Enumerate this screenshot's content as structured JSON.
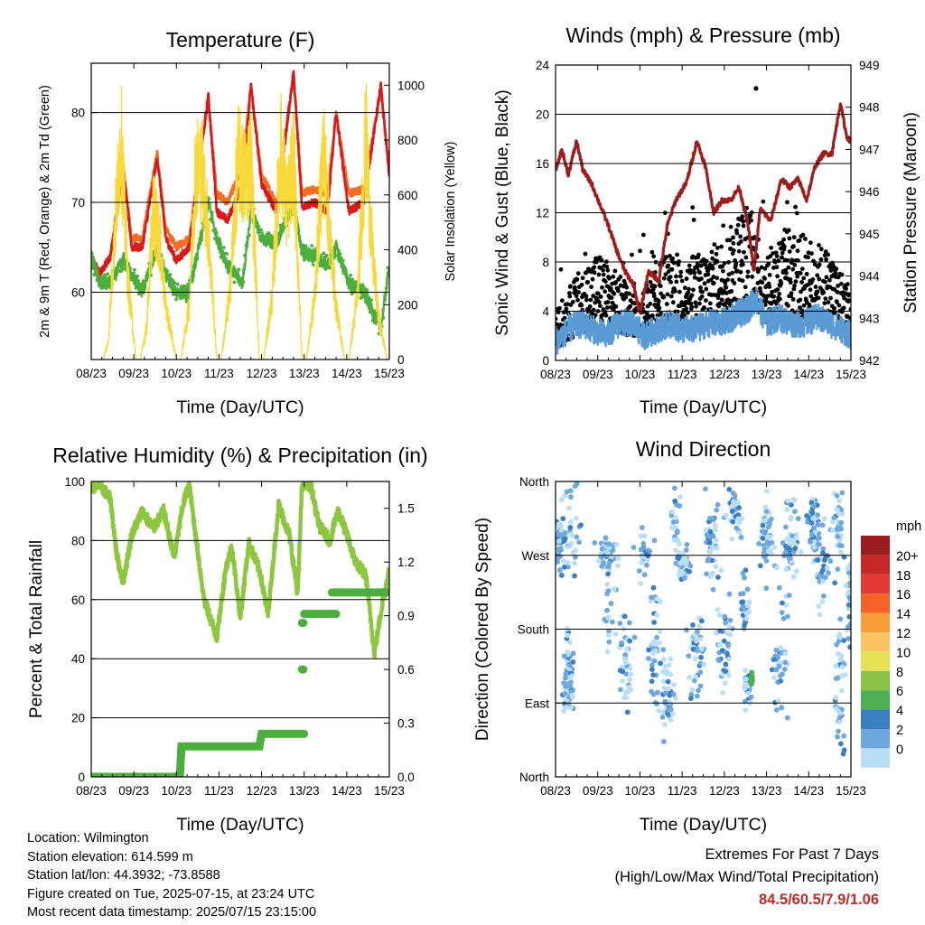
{
  "colors": {
    "temp2m": "#d7191c",
    "temp9m": "#f46d22",
    "dewpoint": "#4cae3c",
    "solar": "#f7d93a",
    "gust": "#000000",
    "wind": "#5b9bd5",
    "pressure": "#a01c1c",
    "rh": "#8dc63f",
    "precip": "#4cae3c"
  },
  "chart_data": [
    {
      "type": "line",
      "title": "Temperature (F)",
      "xlabel": "Time (Day/UTC)",
      "ylabel": "2m & 9m T (Red, Orange) & 2m Td (Green)",
      "y2label": "Solar Insolation (Yellow)",
      "xticks": [
        "08/23",
        "09/23",
        "10/23",
        "11/23",
        "12/23",
        "13/23",
        "14/23",
        "15/23"
      ],
      "xlim": [
        0,
        7
      ],
      "ylim": [
        52.5,
        85.5
      ],
      "yticks": [
        60,
        70,
        80
      ],
      "y2lim": [
        0,
        1080
      ],
      "y2ticks": [
        0,
        200,
        400,
        600,
        800,
        1000
      ],
      "grid": "horizontal",
      "series": [
        {
          "key": "t9",
          "color": "temp9m",
          "width": 2.6,
          "x": [
            0,
            0.2,
            0.45,
            0.75,
            0.95,
            1.2,
            1.55,
            1.75,
            2.0,
            2.3,
            2.75,
            2.95,
            3.2,
            3.55,
            3.75,
            4.0,
            4.35,
            4.75,
            4.95,
            5.25,
            5.55,
            5.75,
            6.05,
            6.4,
            6.8,
            7.0
          ],
          "y": [
            64,
            62,
            64,
            74,
            66,
            66,
            75.5,
            67,
            65,
            66,
            81.5,
            71,
            70,
            74,
            83,
            73,
            70,
            84.5,
            71,
            71.5,
            71,
            80,
            71,
            71.5,
            82.5,
            73.5
          ]
        },
        {
          "key": "t2",
          "color": "temp2m",
          "width": 2.6,
          "x": [
            0,
            0.2,
            0.45,
            0.75,
            0.95,
            1.2,
            1.55,
            1.75,
            2.0,
            2.3,
            2.75,
            2.95,
            3.2,
            3.55,
            3.75,
            4.0,
            4.35,
            4.75,
            4.95,
            5.25,
            5.55,
            5.75,
            6.05,
            6.4,
            6.8,
            7.0
          ],
          "y": [
            64,
            62,
            64,
            74,
            65,
            65,
            75,
            66,
            63.5,
            65,
            82,
            69,
            68,
            72,
            83,
            72,
            69,
            84.5,
            69.5,
            70,
            69,
            80,
            69,
            70,
            83,
            73
          ]
        },
        {
          "key": "td",
          "color": "dewpoint",
          "width": 2.2,
          "x": [
            0,
            0.2,
            0.45,
            0.75,
            0.95,
            1.2,
            1.55,
            1.75,
            2.0,
            2.3,
            2.75,
            2.95,
            3.2,
            3.55,
            3.75,
            4.0,
            4.35,
            4.75,
            4.95,
            5.25,
            5.55,
            5.75,
            6.05,
            6.4,
            6.8,
            7.0
          ],
          "y": [
            64,
            61,
            61,
            63.5,
            62,
            60,
            65,
            62,
            60,
            60,
            70,
            66,
            63,
            61,
            69,
            66,
            65.5,
            70,
            64.5,
            64,
            63,
            65,
            61,
            60,
            56,
            63
          ]
        },
        {
          "key": "solar",
          "color": "solar",
          "axis": "y2",
          "width": 1.3,
          "x": [
            0,
            0.12,
            0.28,
            0.4,
            0.55,
            0.7,
            0.85,
            1.05,
            1.15,
            1.3,
            1.45,
            1.6,
            1.75,
            2.0,
            2.1,
            2.3,
            2.45,
            2.6,
            2.75,
            2.95,
            3.05,
            3.25,
            3.45,
            3.6,
            3.75,
            3.95,
            4.05,
            4.25,
            4.45,
            4.6,
            4.75,
            4.95,
            5.05,
            5.25,
            5.45,
            5.6,
            5.75,
            5.95,
            6.05,
            6.25,
            6.45,
            6.6,
            6.75,
            6.95,
            7.0
          ],
          "y": [
            0,
            0,
            0,
            80,
            600,
            1050,
            400,
            0,
            0,
            150,
            700,
            580,
            250,
            0,
            0,
            250,
            900,
            900,
            600,
            0,
            0,
            300,
            950,
            850,
            950,
            0,
            0,
            300,
            1000,
            700,
            950,
            0,
            0,
            300,
            1000,
            600,
            250,
            0,
            0,
            300,
            1050,
            500,
            200,
            0,
            0
          ]
        }
      ]
    },
    {
      "type": "scatter",
      "title": "Winds (mph) & Pressure (mb)",
      "xlabel": "Time (Day/UTC)",
      "ylabel": "Sonic Wind & Gust (Blue, Black)",
      "y2label": "Station Pressure (Maroon)",
      "xticks": [
        "08/23",
        "09/23",
        "10/23",
        "11/23",
        "12/23",
        "13/23",
        "14/23",
        "15/23"
      ],
      "xlim": [
        0,
        7
      ],
      "ylim": [
        0,
        24
      ],
      "yticks": [
        0,
        4,
        8,
        12,
        16,
        20,
        24
      ],
      "y2lim": [
        942,
        949
      ],
      "y2ticks": [
        942,
        943,
        944,
        945,
        946,
        947,
        948,
        949
      ],
      "grid": "horizontal",
      "series": [
        {
          "key": "gust",
          "color": "gust",
          "marker": "dot",
          "envelope_x": [
            0,
            0.5,
            1.0,
            1.5,
            2.0,
            2.5,
            3.0,
            3.5,
            4.0,
            4.5,
            5.0,
            5.5,
            6.0,
            6.5,
            7.0
          ],
          "envelope_high": [
            4,
            7,
            9,
            7,
            5,
            9,
            8,
            9,
            10,
            13,
            9,
            11,
            10,
            9,
            6
          ],
          "envelope_low": [
            1,
            2,
            3,
            2,
            2,
            3,
            3,
            3,
            4,
            5,
            3,
            4,
            3,
            3,
            2
          ],
          "max_point": [
            4.75,
            22.1
          ]
        },
        {
          "key": "wind",
          "color": "wind",
          "width": 2.2,
          "x": [
            0,
            0.3,
            0.6,
            0.9,
            1.2,
            1.5,
            1.8,
            2.1,
            2.4,
            2.7,
            3.0,
            3.3,
            3.6,
            3.9,
            4.2,
            4.5,
            4.75,
            5.0,
            5.3,
            5.6,
            5.9,
            6.2,
            6.5,
            6.8,
            7.0
          ],
          "y": [
            1.5,
            2.5,
            3,
            2.5,
            2,
            3,
            3,
            2,
            2.5,
            3,
            2.5,
            2.5,
            3,
            3,
            3.5,
            4,
            5,
            3,
            3.5,
            3,
            3,
            3.5,
            3,
            2.5,
            2
          ]
        },
        {
          "key": "pressure",
          "color": "pressure",
          "axis": "y2",
          "width": 3.2,
          "x": [
            0,
            0.15,
            0.3,
            0.5,
            0.65,
            0.85,
            1.05,
            1.25,
            1.45,
            1.65,
            1.85,
            2.0,
            2.2,
            2.45,
            2.65,
            2.85,
            3.1,
            3.35,
            3.55,
            3.75,
            3.95,
            4.15,
            4.35,
            4.55,
            4.7,
            4.85,
            5.1,
            5.35,
            5.55,
            5.75,
            5.95,
            6.15,
            6.35,
            6.55,
            6.75,
            6.9,
            7.0
          ],
          "y": [
            946.5,
            947,
            946.4,
            947.2,
            946.5,
            946.2,
            945.7,
            945.2,
            944.6,
            944.1,
            943.8,
            943.1,
            944.1,
            943.9,
            945.2,
            945.8,
            946.2,
            947.2,
            946.6,
            945.5,
            945.8,
            945.8,
            946.1,
            945.3,
            944.1,
            945.6,
            945.3,
            946.3,
            946.1,
            946.3,
            945.8,
            946.6,
            946.9,
            946.9,
            948.1,
            947.3,
            947.2
          ]
        }
      ]
    },
    {
      "type": "line",
      "title": "Relative Humidity (%) & Precipitation (in)",
      "xlabel": "Time (Day/UTC)",
      "ylabel": "Percent & Total Rainfall",
      "xticks": [
        "08/23",
        "09/23",
        "10/23",
        "11/23",
        "12/23",
        "13/23",
        "14/23",
        "15/23"
      ],
      "xlim": [
        0,
        7
      ],
      "ylim": [
        0,
        100
      ],
      "yticks": [
        0,
        20,
        40,
        60,
        80,
        100
      ],
      "y2lim": [
        0,
        1.65
      ],
      "y2ticks": [
        0.0,
        0.3,
        0.6,
        0.9,
        1.2,
        1.5
      ],
      "grid": "horizontal",
      "series": [
        {
          "key": "rh",
          "color": "rh",
          "width": 4.5,
          "x": [
            0,
            0.2,
            0.45,
            0.6,
            0.75,
            0.95,
            1.2,
            1.45,
            1.7,
            1.95,
            2.15,
            2.3,
            2.45,
            2.65,
            2.95,
            3.15,
            3.3,
            3.5,
            3.7,
            3.95,
            4.15,
            4.4,
            4.65,
            4.85,
            4.95,
            5.15,
            5.35,
            5.6,
            5.8,
            6.0,
            6.2,
            6.45,
            6.65,
            6.85,
            7.0
          ],
          "y": [
            98,
            99,
            94,
            75,
            66,
            82,
            90,
            84,
            90,
            74,
            92,
            99,
            82,
            60,
            47,
            70,
            78,
            54,
            79,
            70,
            55,
            92,
            82,
            62,
            99,
            99,
            85,
            80,
            90,
            82,
            73,
            68,
            42,
            60,
            70
          ]
        },
        {
          "key": "precip",
          "color": "precip",
          "width": 9,
          "x": [
            0,
            2.08,
            2.12,
            3.95,
            4.0,
            4.95,
            5.0
          ],
          "y": [
            0,
            0,
            0.17,
            0.17,
            0.24,
            0.24,
            0.24
          ]
        },
        {
          "key": "precip-late",
          "color": "precip",
          "width": 9,
          "segments": [
            [
              4.95,
              0.6,
              4.98,
              0.6
            ],
            [
              4.95,
              0.86,
              4.98,
              0.86
            ],
            [
              5.0,
              0.91,
              5.75,
              0.91
            ],
            [
              5.65,
              1.03,
              7.0,
              1.03
            ]
          ]
        }
      ]
    },
    {
      "type": "scatter",
      "title": "Wind Direction",
      "xlabel": "Time (Day/UTC)",
      "ylabel": "Direction (Colored By Speed)",
      "xticks": [
        "08/23",
        "09/23",
        "10/23",
        "11/23",
        "12/23",
        "13/23",
        "14/23",
        "15/23"
      ],
      "xlim": [
        0,
        7
      ],
      "ylim": [
        0,
        360
      ],
      "yticks": [
        0,
        90,
        180,
        270,
        360
      ],
      "yticklabels": [
        "North",
        "East",
        "South",
        "West",
        "North"
      ],
      "grid": "horizontal",
      "colorbar": {
        "title": "mph",
        "labels": [
          "20+",
          "18",
          "16",
          "14",
          "12",
          "10",
          "8",
          "6",
          "4",
          "2",
          "0"
        ],
        "colors": [
          "#9b1c1c",
          "#c62828",
          "#e53935",
          "#f4622a",
          "#f99d3a",
          "#fbc462",
          "#e6e154",
          "#8bc34a",
          "#4caf50",
          "#3a7fc2",
          "#6fa8dc",
          "#b9dff7"
        ]
      },
      "clusters": [
        {
          "x": 0.3,
          "y": 120,
          "sx": 0.12,
          "sy": 40,
          "n": 70
        },
        {
          "x": 0.15,
          "y": 280,
          "sx": 0.15,
          "sy": 30,
          "n": 40
        },
        {
          "x": 0.4,
          "y": 300,
          "sx": 0.2,
          "sy": 50,
          "n": 30
        },
        {
          "x": 1.25,
          "y": 270,
          "sx": 0.18,
          "sy": 18,
          "n": 45
        },
        {
          "x": 1.3,
          "y": 200,
          "sx": 0.15,
          "sy": 40,
          "n": 20
        },
        {
          "x": 1.65,
          "y": 140,
          "sx": 0.15,
          "sy": 45,
          "n": 40
        },
        {
          "x": 2.1,
          "y": 270,
          "sx": 0.15,
          "sy": 25,
          "n": 30
        },
        {
          "x": 2.35,
          "y": 170,
          "sx": 0.15,
          "sy": 60,
          "n": 40
        },
        {
          "x": 2.65,
          "y": 100,
          "sx": 0.15,
          "sy": 40,
          "n": 40
        },
        {
          "x": 3.0,
          "y": 260,
          "sx": 0.12,
          "sy": 15,
          "n": 50
        },
        {
          "x": 2.85,
          "y": 320,
          "sx": 0.12,
          "sy": 30,
          "n": 20
        },
        {
          "x": 3.35,
          "y": 150,
          "sx": 0.15,
          "sy": 60,
          "n": 40
        },
        {
          "x": 3.7,
          "y": 290,
          "sx": 0.15,
          "sy": 45,
          "n": 45
        },
        {
          "x": 4.0,
          "y": 160,
          "sx": 0.15,
          "sy": 50,
          "n": 40
        },
        {
          "x": 4.55,
          "y": 110,
          "sx": 0.08,
          "sy": 20,
          "n": 35
        },
        {
          "x": 4.5,
          "y": 220,
          "sx": 0.12,
          "sy": 40,
          "n": 25
        },
        {
          "x": 4.25,
          "y": 320,
          "sx": 0.15,
          "sy": 30,
          "n": 35
        },
        {
          "x": 5.0,
          "y": 290,
          "sx": 0.15,
          "sy": 40,
          "n": 50
        },
        {
          "x": 5.35,
          "y": 150,
          "sx": 0.15,
          "sy": 60,
          "n": 40
        },
        {
          "x": 5.6,
          "y": 290,
          "sx": 0.15,
          "sy": 40,
          "n": 50
        },
        {
          "x": 6.1,
          "y": 300,
          "sx": 0.15,
          "sy": 35,
          "n": 55
        },
        {
          "x": 6.35,
          "y": 260,
          "sx": 0.15,
          "sy": 40,
          "n": 30
        },
        {
          "x": 6.7,
          "y": 310,
          "sx": 0.12,
          "sy": 35,
          "n": 40
        },
        {
          "x": 6.75,
          "y": 110,
          "sx": 0.1,
          "sy": 60,
          "n": 40
        },
        {
          "x": 6.95,
          "y": 220,
          "sx": 0.06,
          "sy": 70,
          "n": 25
        }
      ],
      "highlight": {
        "x": 4.65,
        "y": 120,
        "sx": 0.02,
        "sy": 12,
        "n": 8,
        "color_index": 8
      }
    }
  ],
  "info": {
    "location": "Location: Wilmington",
    "elevation": "Station elevation: 614.599 m",
    "latlon": "Station lat/lon: 44.3932; -73.8588",
    "created": "Figure created on Tue, 2025-07-15, at 23:24 UTC",
    "latest": "Most recent data timestamp: 2025/07/15 23:15:00"
  },
  "extremes": {
    "line1": "Extremes For Past 7 Days",
    "line2": "(High/Low/Max Wind/Total Precipitation)",
    "values": "84.5/60.5/7.9/1.06"
  }
}
